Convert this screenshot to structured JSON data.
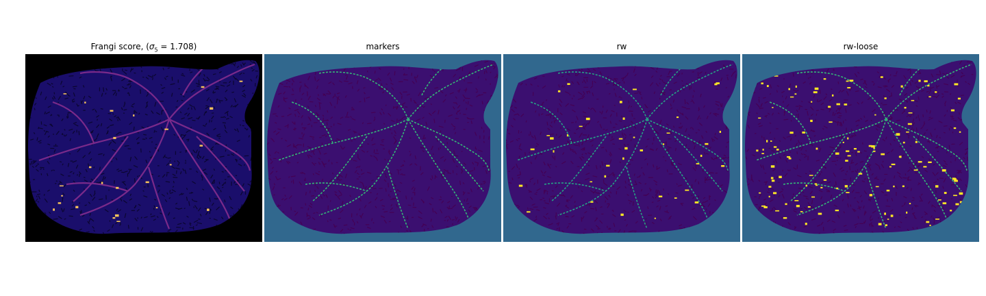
{
  "panels": [
    {
      "title_prefix": "Frangi score, (",
      "title_sigma": "σ",
      "title_sub": "5",
      "title_suffix": " = 1.708)",
      "background": "#000000",
      "tissue": "#1a0e6b",
      "texture": "#0b0630",
      "vessel": "#7a2a8a",
      "highlight": "#f7c35a",
      "colormap": "plasma"
    },
    {
      "title": "markers",
      "background": "#31688e",
      "tissue": "#3b0f70",
      "texture": "#440154",
      "vessel": "#35b779",
      "highlight": "#35b779",
      "colormap": "viridis"
    },
    {
      "title": "rw",
      "background": "#31688e",
      "tissue": "#3b0f70",
      "texture": "#440154",
      "vessel": "#26a386",
      "highlight": "#fde725",
      "colormap": "viridis"
    },
    {
      "title": "rw-loose",
      "background": "#31688e",
      "tissue": "#3b0f70",
      "texture": "#440154",
      "vessel": "#35b779",
      "highlight": "#fde725",
      "colormap": "viridis"
    }
  ]
}
